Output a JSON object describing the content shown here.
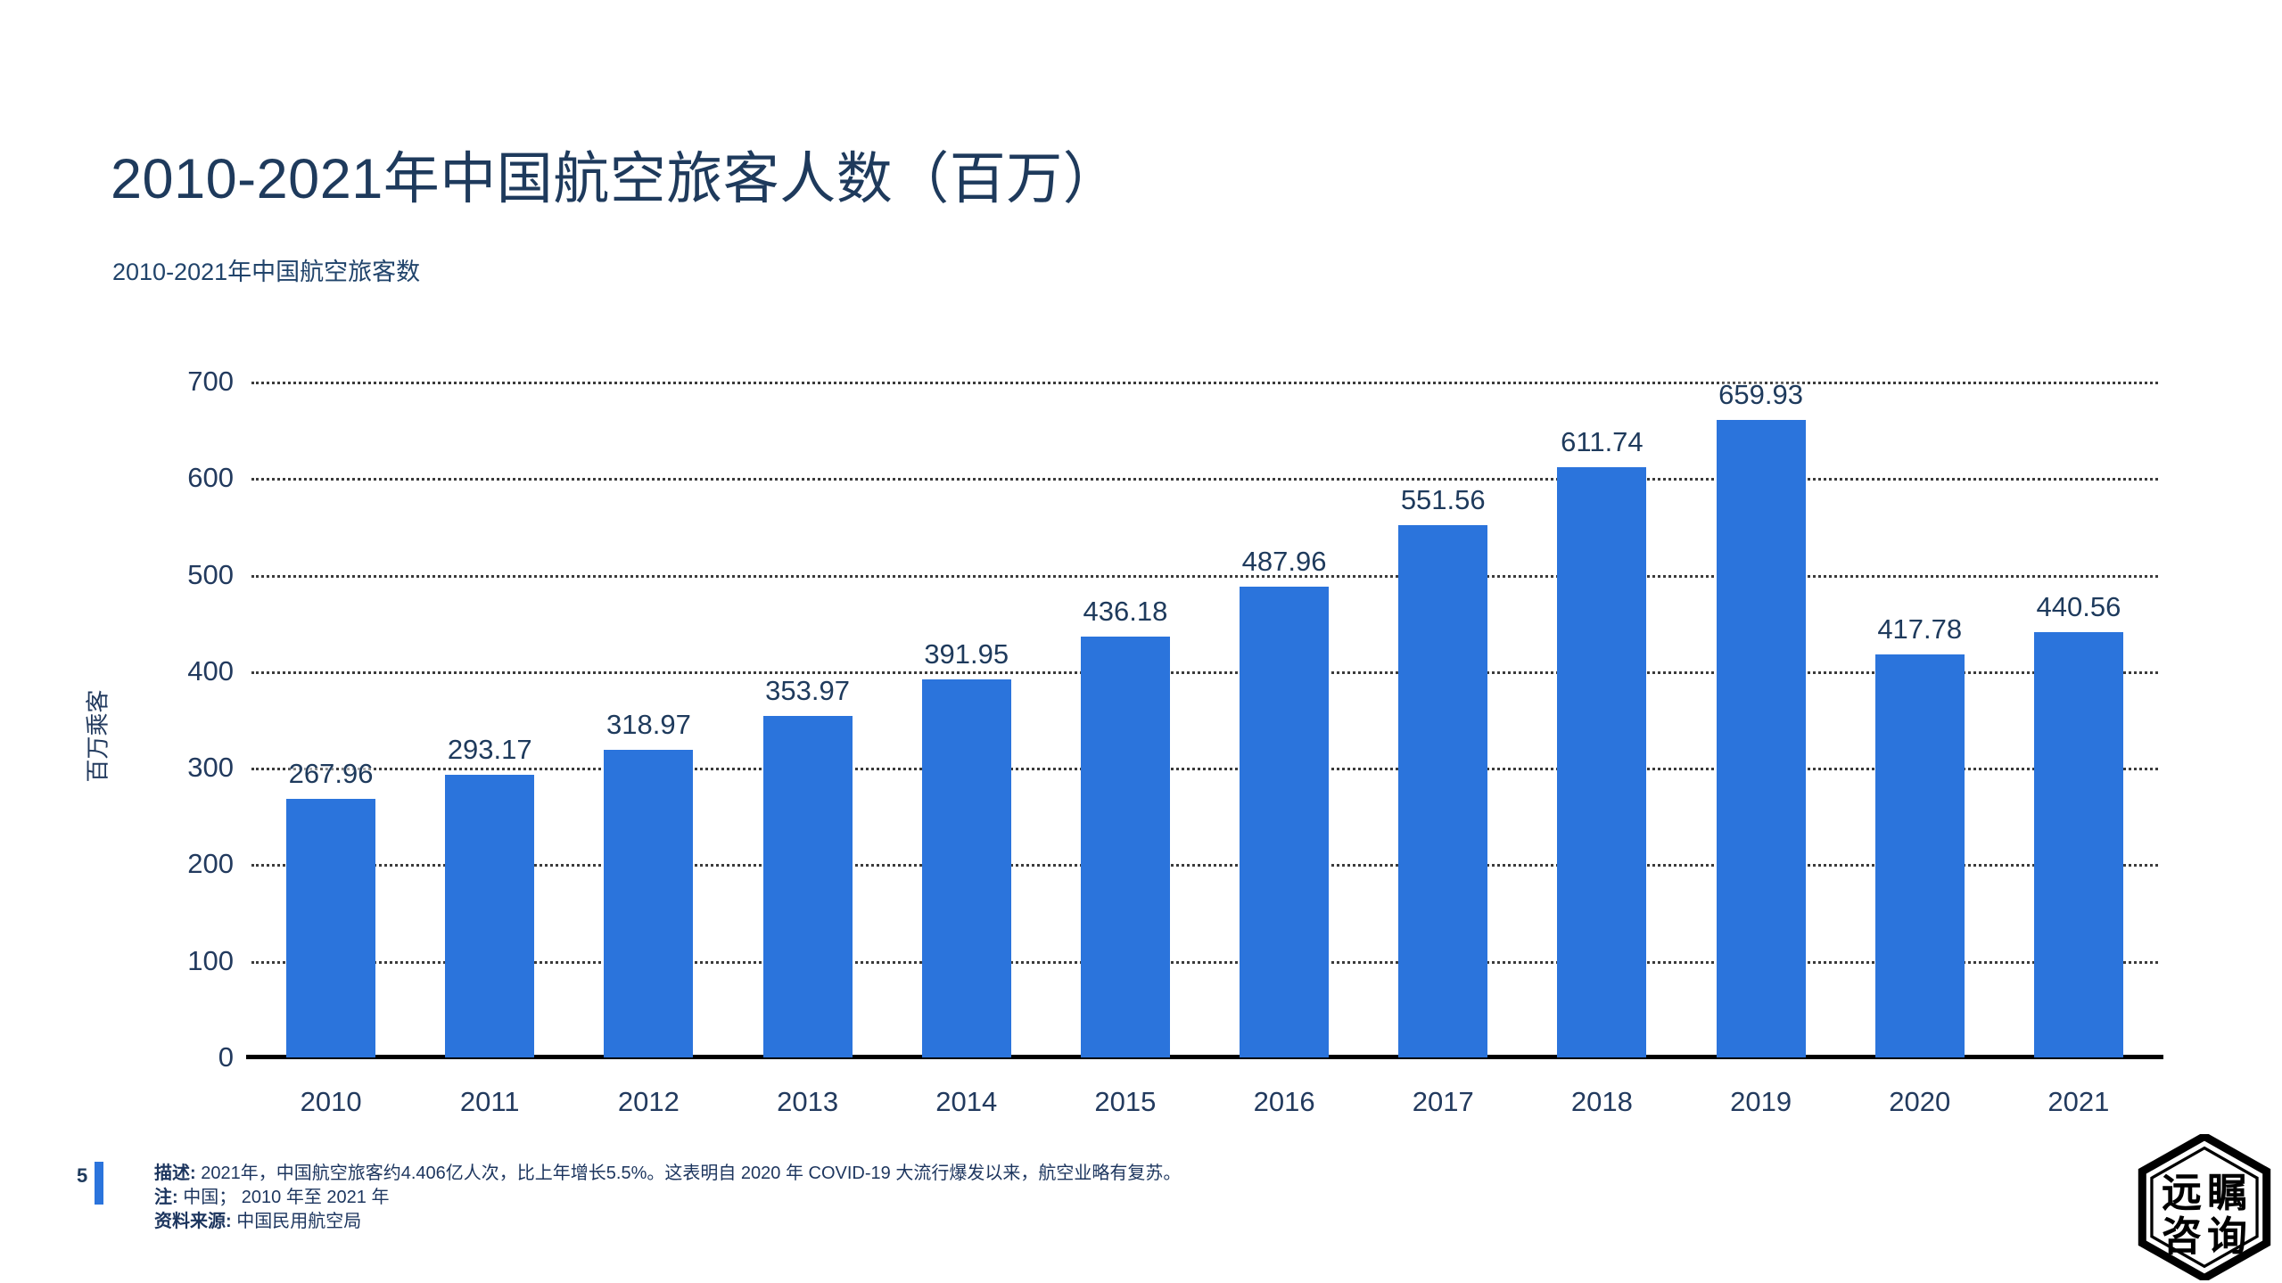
{
  "page": {
    "title": "2010-2021年中国航空旅客人数（百万）",
    "subtitle": "2010-2021年中国航空旅客数",
    "page_number": "5",
    "footer": {
      "description_label": "描述:",
      "description": "2021年，中国航空旅客约4.406亿人次，比上年增长5.5%。这表明自 2020 年 COVID-19 大流行爆发以来，航空业略有复苏。",
      "note_label": "注:",
      "note": "中国； 2010 年至 2021 年",
      "source_label": "资料来源:",
      "source": "中国民用航空局"
    },
    "logo": {
      "row_top": "远瞩",
      "row_bottom": "咨询"
    }
  },
  "chart_data": {
    "type": "bar",
    "title": "2010-2021年中国航空旅客数",
    "categories": [
      "2010",
      "2011",
      "2012",
      "2013",
      "2014",
      "2015",
      "2016",
      "2017",
      "2018",
      "2019",
      "2020",
      "2021"
    ],
    "values": [
      267.96,
      293.17,
      318.97,
      353.97,
      391.95,
      436.18,
      487.96,
      551.56,
      611.74,
      659.93,
      417.78,
      440.56
    ],
    "xlabel": "",
    "ylabel": "百万乘客",
    "ylim": [
      0,
      700
    ],
    "yticks": [
      0,
      100,
      200,
      300,
      400,
      500,
      600,
      700
    ],
    "grid": "horizontal-dotted",
    "legend": "none",
    "bar_color": "#2b74dc",
    "value_labels": "above-bars, 2 decimals"
  }
}
